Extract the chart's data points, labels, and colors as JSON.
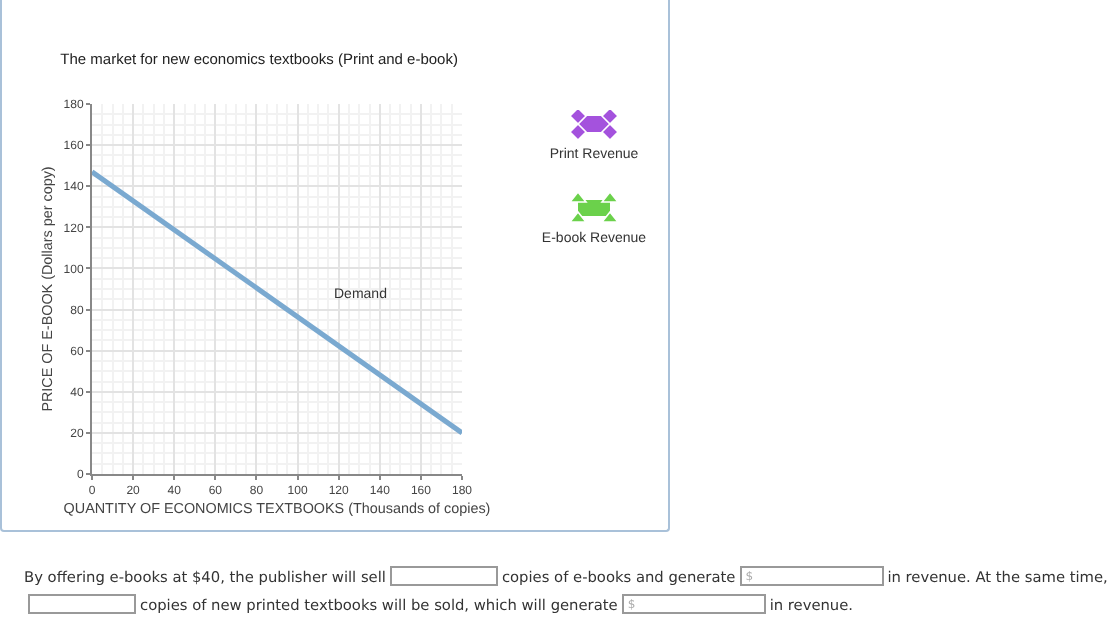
{
  "chart_data": {
    "type": "line",
    "title": "The market for new economics textbooks (Print and e-book)",
    "xlabel": "QUANTITY OF ECONOMICS TEXTBOOKS (Thousands of copies)",
    "ylabel": "PRICE OF E-BOOK (Dollars per copy)",
    "x": [
      0,
      180
    ],
    "series": [
      {
        "name": "Demand",
        "color": "#7aa9d0",
        "values": [
          147,
          20
        ]
      }
    ],
    "xlim": [
      0,
      180
    ],
    "xticks": [
      0,
      20,
      40,
      60,
      80,
      100,
      120,
      140,
      160,
      180
    ],
    "ylim": [
      0,
      180
    ],
    "yticks": [
      0,
      20,
      40,
      60,
      80,
      100,
      120,
      140,
      160,
      180
    ],
    "grid": true,
    "legend": false,
    "marker": "none",
    "line_style": "solid",
    "annotations": [
      "Print Revenue",
      "E-book Revenue",
      "By offering e-books at $40, the publisher will sell",
      "copies of e-books and generate",
      "$",
      "in revenue. At the same time,",
      "copies of new printed textbooks will be sold, which will generate",
      "$",
      "in revenue."
    ]
  }
}
